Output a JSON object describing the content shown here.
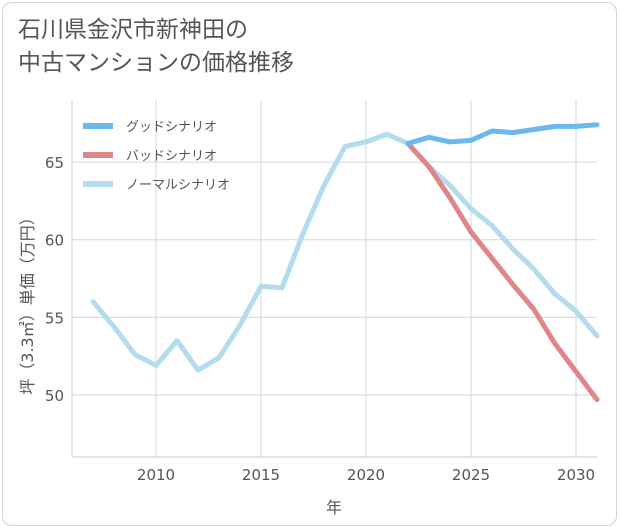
{
  "title_lines": [
    "石川県金沢市新神田の",
    "中古マンションの価格推移"
  ],
  "chart_data": {
    "type": "line",
    "title": "石川県金沢市新神田の中古マンションの価格推移",
    "xlabel": "年",
    "ylabel": "坪（3.3㎡）単価（万円）",
    "xlim": [
      2006,
      2031
    ],
    "ylim": [
      46,
      69
    ],
    "xticks": [
      2010,
      2015,
      2020,
      2025,
      2030
    ],
    "yticks": [
      50,
      55,
      60,
      65
    ],
    "legend_position": "top-left",
    "grid": true,
    "series": [
      {
        "name": "グッドシナリオ",
        "color": "#6ab8ee",
        "x": [
          2022,
          2023,
          2024,
          2025,
          2026,
          2027,
          2028,
          2029,
          2030,
          2031
        ],
        "values": [
          66.2,
          66.6,
          66.3,
          66.4,
          67.0,
          66.9,
          67.1,
          67.3,
          67.3,
          67.4
        ]
      },
      {
        "name": "バッドシナリオ",
        "color": "#e0868b",
        "x": [
          2022,
          2023,
          2024,
          2025,
          2026,
          2027,
          2028,
          2029,
          2030,
          2031
        ],
        "values": [
          66.2,
          64.7,
          62.7,
          60.5,
          58.8,
          57.1,
          55.5,
          53.3,
          51.5,
          49.7
        ]
      },
      {
        "name": "ノーマルシナリオ",
        "color": "#b3dcee",
        "x": [
          2007,
          2008,
          2009,
          2010,
          2011,
          2012,
          2013,
          2014,
          2015,
          2016,
          2017,
          2018,
          2019,
          2020,
          2021,
          2022,
          2023,
          2024,
          2025,
          2026,
          2027,
          2028,
          2029,
          2030,
          2031
        ],
        "values": [
          56.0,
          54.4,
          52.6,
          51.9,
          53.5,
          51.6,
          52.4,
          54.5,
          57.0,
          56.9,
          60.4,
          63.5,
          66.0,
          66.3,
          66.8,
          66.2,
          64.7,
          63.5,
          62.0,
          60.9,
          59.4,
          58.1,
          56.5,
          55.4,
          53.8
        ]
      }
    ]
  }
}
